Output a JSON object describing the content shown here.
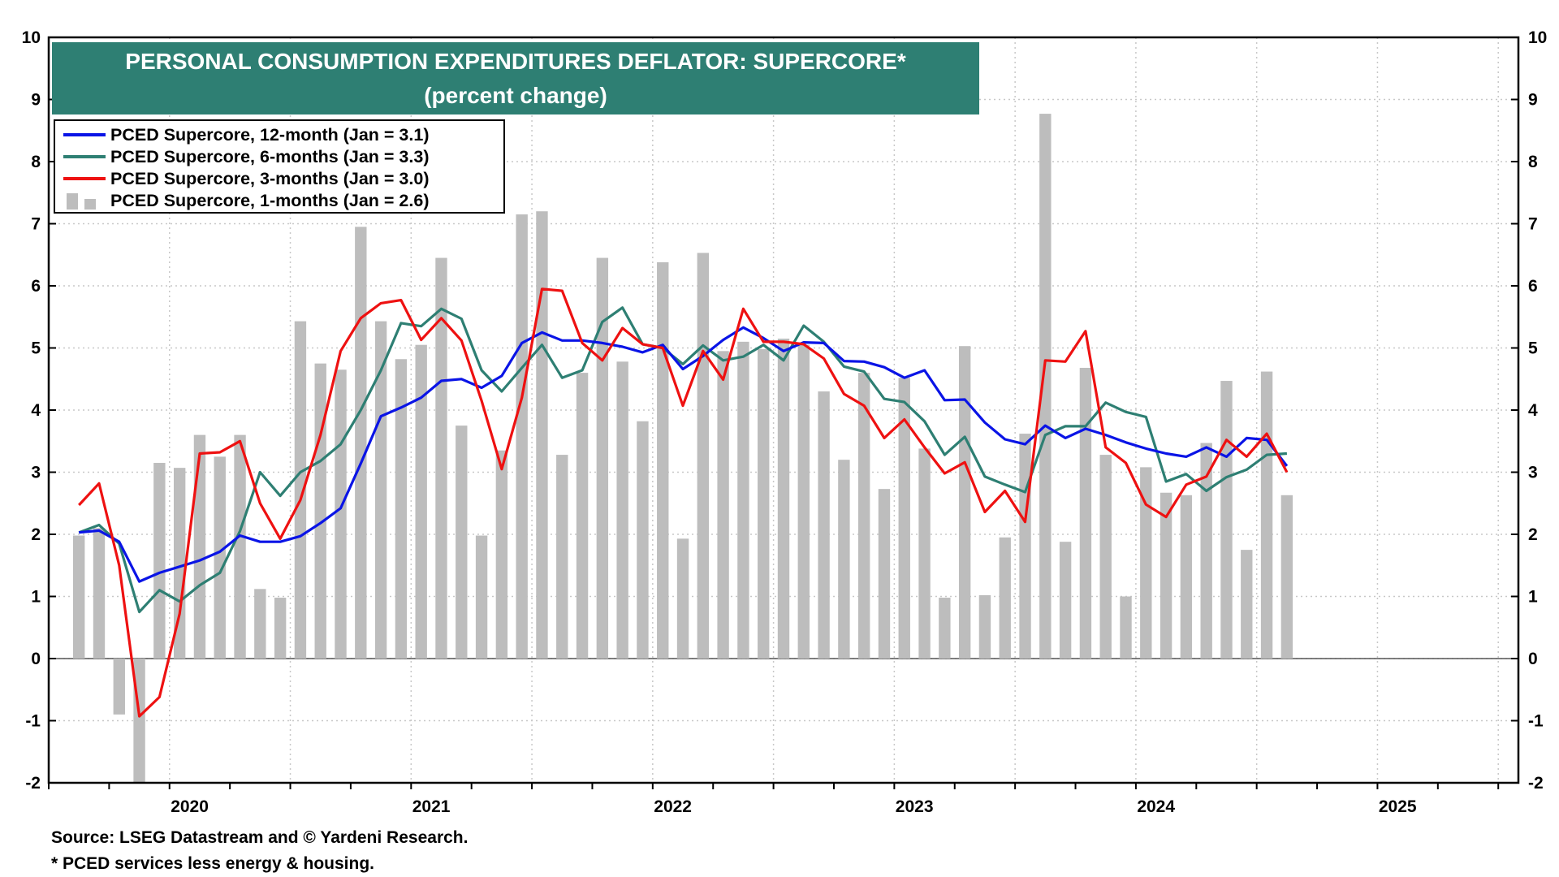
{
  "title": "PERSONAL CONSUMPTION EXPENDITURES DEFLATOR: SUPERCORE*",
  "subtitle": "(percent change)",
  "legend": [
    {
      "label": "PCED Supercore, 12-month (Jan = 3.1)",
      "color": "#0a14e6",
      "kind": "line"
    },
    {
      "label": "PCED Supercore, 6-months (Jan = 3.3)",
      "color": "#2e7f73",
      "kind": "line"
    },
    {
      "label": "PCED Supercore, 3-months (Jan = 3.0)",
      "color": "#ee1111",
      "kind": "line"
    },
    {
      "label": "PCED Supercore, 1-months (Jan = 2.6)",
      "color": "#bdbdbd",
      "kind": "bar"
    }
  ],
  "source": "Source: LSEG Datastream and © Yardeni Research.",
  "footnote": "* PCED services less energy & housing.",
  "chart_data": {
    "type": "bar",
    "x": [
      "2020-01",
      "2020-02",
      "2020-03",
      "2020-04",
      "2020-05",
      "2020-06",
      "2020-07",
      "2020-08",
      "2020-09",
      "2020-10",
      "2020-11",
      "2020-12",
      "2021-01",
      "2021-02",
      "2021-03",
      "2021-04",
      "2021-05",
      "2021-06",
      "2021-07",
      "2021-08",
      "2021-09",
      "2021-10",
      "2021-11",
      "2021-12",
      "2022-01",
      "2022-02",
      "2022-03",
      "2022-04",
      "2022-05",
      "2022-06",
      "2022-07",
      "2022-08",
      "2022-09",
      "2022-10",
      "2022-11",
      "2022-12",
      "2023-01",
      "2023-02",
      "2023-03",
      "2023-04",
      "2023-05",
      "2023-06",
      "2023-07",
      "2023-08",
      "2023-09",
      "2023-10",
      "2023-11",
      "2023-12",
      "2024-01",
      "2024-02",
      "2024-03",
      "2024-04",
      "2024-05",
      "2024-06",
      "2024-07",
      "2024-08",
      "2024-09",
      "2024-10",
      "2024-11",
      "2024-12",
      "2025-01"
    ],
    "x_tick_labels": [
      "2020",
      "2021",
      "2022",
      "2023",
      "2024",
      "2025"
    ],
    "y_ticks": [
      -2,
      -1,
      0,
      1,
      2,
      3,
      4,
      5,
      6,
      7,
      8,
      9,
      10
    ],
    "ylim": [
      -2,
      10
    ],
    "xlim": [
      "2019-12",
      "2025-12"
    ],
    "grid": true,
    "legend_position": "top-left",
    "series": [
      {
        "name": "PCED Supercore, 12-month (Jan = 3.1)",
        "type": "line",
        "color": "#0a14e6",
        "values": [
          2.03,
          2.06,
          1.88,
          1.24,
          1.38,
          1.48,
          1.58,
          1.72,
          1.98,
          1.88,
          1.88,
          1.97,
          2.18,
          2.42,
          3.14,
          3.9,
          4.04,
          4.2,
          4.47,
          4.5,
          4.36,
          4.55,
          5.08,
          5.25,
          5.12,
          5.12,
          5.08,
          5.02,
          4.93,
          5.05,
          4.66,
          4.87,
          5.13,
          5.33,
          5.16,
          4.95,
          5.09,
          5.08,
          4.79,
          4.78,
          4.69,
          4.52,
          4.64,
          4.16,
          4.17,
          3.8,
          3.53,
          3.45,
          3.75,
          3.55,
          3.7,
          3.6,
          3.48,
          3.38,
          3.3,
          3.25,
          3.4,
          3.25,
          3.55,
          3.52,
          3.1
        ]
      },
      {
        "name": "PCED Supercore, 6-months (Jan = 3.3)",
        "type": "line",
        "color": "#2e7f73",
        "values": [
          2.03,
          2.15,
          1.85,
          0.75,
          1.1,
          0.92,
          1.18,
          1.38,
          2.05,
          3.0,
          2.62,
          3.0,
          3.18,
          3.45,
          4.0,
          4.64,
          5.4,
          5.35,
          5.63,
          5.47,
          4.64,
          4.3,
          4.68,
          5.05,
          4.52,
          4.64,
          5.42,
          5.65,
          5.06,
          5.0,
          4.74,
          5.04,
          4.8,
          4.86,
          5.05,
          4.8,
          5.36,
          5.1,
          4.7,
          4.62,
          4.18,
          4.13,
          3.82,
          3.28,
          3.57,
          2.93,
          2.8,
          2.68,
          3.6,
          3.74,
          3.74,
          4.12,
          3.97,
          3.89,
          2.85,
          2.97,
          2.7,
          2.92,
          3.04,
          3.28,
          3.3
        ]
      },
      {
        "name": "PCED Supercore, 3-months (Jan = 3.0)",
        "type": "line",
        "color": "#ee1111",
        "values": [
          2.47,
          2.82,
          1.5,
          -0.93,
          -0.62,
          0.72,
          3.3,
          3.32,
          3.5,
          2.5,
          1.93,
          2.55,
          3.6,
          4.95,
          5.48,
          5.72,
          5.77,
          5.13,
          5.48,
          5.12,
          4.15,
          3.05,
          4.2,
          5.95,
          5.92,
          5.08,
          4.8,
          5.32,
          5.06,
          5.0,
          4.07,
          4.95,
          4.49,
          5.63,
          5.1,
          5.1,
          5.06,
          4.83,
          4.26,
          4.07,
          3.55,
          3.85,
          3.4,
          2.98,
          3.16,
          2.36,
          2.7,
          2.2,
          4.8,
          4.78,
          5.27,
          3.4,
          3.15,
          2.48,
          2.28,
          2.8,
          2.93,
          3.52,
          3.25,
          3.62,
          3.0
        ]
      },
      {
        "name": "PCED Supercore, 1-months (Jan = 2.6)",
        "type": "bar",
        "color": "#bdbdbd",
        "values": [
          1.98,
          2.1,
          -0.9,
          -2.05,
          3.15,
          3.07,
          3.6,
          3.25,
          3.6,
          1.12,
          0.98,
          5.43,
          4.75,
          4.65,
          6.95,
          5.43,
          4.82,
          5.05,
          6.45,
          3.75,
          1.98,
          3.35,
          7.15,
          7.2,
          3.28,
          4.6,
          6.45,
          4.78,
          3.82,
          6.38,
          1.93,
          6.53,
          4.95,
          5.1,
          4.98,
          5.15,
          5.05,
          4.3,
          3.2,
          4.6,
          2.73,
          4.52,
          3.38,
          0.98,
          5.03,
          1.02,
          1.95,
          3.62,
          8.77,
          1.88,
          4.68,
          3.28,
          1.0,
          3.08,
          2.67,
          2.63,
          3.47,
          4.47,
          1.75,
          4.62,
          2.63
        ]
      }
    ]
  }
}
